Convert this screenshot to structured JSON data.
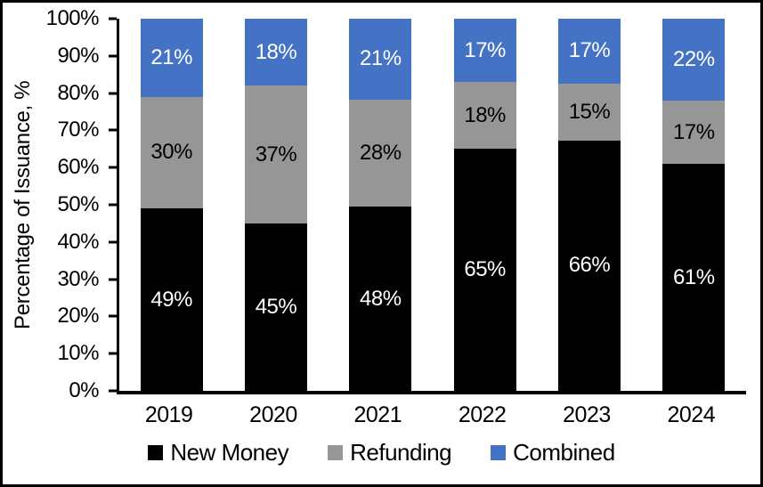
{
  "chart_data": {
    "type": "bar",
    "subtype": "stacked-100-percent",
    "title": "",
    "ylabel": "Percentage of Issuance, %",
    "xlabel": "",
    "ylim": [
      0,
      100
    ],
    "grid": false,
    "legend_position": "bottom",
    "y_tick_labels": [
      "0%",
      "10%",
      "20%",
      "30%",
      "40%",
      "50%",
      "60%",
      "70%",
      "80%",
      "90%",
      "100%"
    ],
    "categories": [
      "2019",
      "2020",
      "2021",
      "2022",
      "2023",
      "2024"
    ],
    "series": [
      {
        "name": "New Money",
        "color": "#000000",
        "label_color": "#ffffff",
        "values": [
          49,
          45,
          48,
          65,
          66,
          61
        ]
      },
      {
        "name": "Refunding",
        "color": "#969696",
        "label_color": "#000000",
        "values": [
          30,
          37,
          28,
          18,
          15,
          17
        ]
      },
      {
        "name": "Combined",
        "color": "#4472C4",
        "label_color": "#ffffff",
        "values": [
          21,
          18,
          21,
          17,
          17,
          22
        ]
      }
    ],
    "data_label_suffix": "%"
  }
}
